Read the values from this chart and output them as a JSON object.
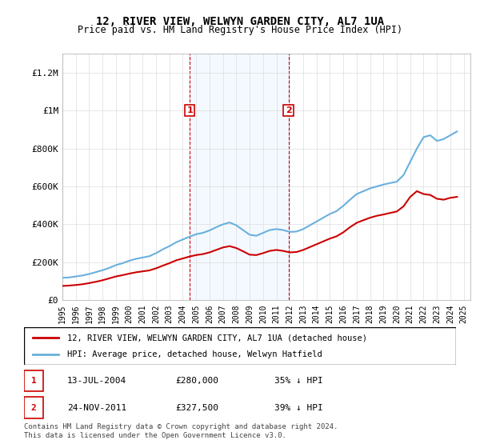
{
  "title": "12, RIVER VIEW, WELWYN GARDEN CITY, AL7 1UA",
  "subtitle": "Price paid vs. HM Land Registry's House Price Index (HPI)",
  "xlim": [
    1995,
    2025.5
  ],
  "ylim": [
    0,
    1300000
  ],
  "yticks": [
    0,
    200000,
    400000,
    600000,
    800000,
    1000000,
    1200000
  ],
  "ytick_labels": [
    "£0",
    "£200K",
    "£400K",
    "£600K",
    "£800K",
    "£1M",
    "£1.2M"
  ],
  "xticks": [
    1995,
    1996,
    1997,
    1998,
    1999,
    2000,
    2001,
    2002,
    2003,
    2004,
    2005,
    2006,
    2007,
    2008,
    2009,
    2010,
    2011,
    2012,
    2013,
    2014,
    2015,
    2016,
    2017,
    2018,
    2019,
    2020,
    2021,
    2022,
    2023,
    2024,
    2025
  ],
  "hpi_color": "#6ab0de",
  "sale_color": "#cc0000",
  "annotation_color": "#cc0000",
  "shaded_color": "#ddeeff",
  "marker1_x": 2004.53,
  "marker1_y": 280000,
  "marker2_x": 2011.9,
  "marker2_y": 327500,
  "annotation1": {
    "label": "1",
    "date": "13-JUL-2004",
    "price": "£280,000",
    "pct": "35% ↓ HPI"
  },
  "annotation2": {
    "label": "2",
    "date": "24-NOV-2011",
    "price": "£327,500",
    "pct": "39% ↓ HPI"
  },
  "legend_sale": "12, RIVER VIEW, WELWYN GARDEN CITY, AL7 1UA (detached house)",
  "legend_hpi": "HPI: Average price, detached house, Welwyn Hatfield",
  "footer": "Contains HM Land Registry data © Crown copyright and database right 2024.\nThis data is licensed under the Open Government Licence v3.0.",
  "hpi_data_x": [
    1995,
    1995.5,
    1996,
    1996.5,
    1997,
    1997.5,
    1998,
    1998.5,
    1999,
    1999.5,
    2000,
    2000.5,
    2001,
    2001.5,
    2002,
    2002.5,
    2003,
    2003.5,
    2004,
    2004.5,
    2005,
    2005.5,
    2006,
    2006.5,
    2007,
    2007.5,
    2008,
    2008.5,
    2009,
    2009.5,
    2010,
    2010.5,
    2011,
    2011.5,
    2012,
    2012.5,
    2013,
    2013.5,
    2014,
    2014.5,
    2015,
    2015.5,
    2016,
    2016.5,
    2017,
    2017.5,
    2018,
    2018.5,
    2019,
    2019.5,
    2020,
    2020.5,
    2021,
    2021.5,
    2022,
    2022.5,
    2023,
    2023.5,
    2024,
    2024.5
  ],
  "hpi_data_y": [
    118000,
    120000,
    125000,
    130000,
    138000,
    148000,
    158000,
    170000,
    185000,
    195000,
    208000,
    218000,
    225000,
    232000,
    248000,
    268000,
    285000,
    305000,
    320000,
    335000,
    348000,
    355000,
    368000,
    385000,
    400000,
    410000,
    395000,
    370000,
    345000,
    340000,
    355000,
    370000,
    375000,
    370000,
    360000,
    362000,
    375000,
    395000,
    415000,
    435000,
    455000,
    470000,
    498000,
    530000,
    560000,
    575000,
    590000,
    600000,
    610000,
    618000,
    625000,
    660000,
    730000,
    800000,
    860000,
    870000,
    840000,
    850000,
    870000,
    890000
  ],
  "sale_data_x": [
    1995,
    1995.5,
    1996,
    1996.5,
    1997,
    1997.5,
    1998,
    1998.5,
    1999,
    1999.5,
    2000,
    2000.5,
    2001,
    2001.5,
    2002,
    2002.5,
    2003,
    2003.5,
    2004,
    2004.5,
    2005,
    2005.5,
    2006,
    2006.5,
    2007,
    2007.5,
    2008,
    2008.5,
    2009,
    2009.5,
    2010,
    2010.5,
    2011,
    2011.5,
    2012,
    2012.5,
    2013,
    2013.5,
    2014,
    2014.5,
    2015,
    2015.5,
    2016,
    2016.5,
    2017,
    2017.5,
    2018,
    2018.5,
    2019,
    2019.5,
    2020,
    2020.5,
    2021,
    2021.5,
    2022,
    2022.5,
    2023,
    2023.5,
    2024,
    2024.5
  ],
  "sale_data_y": [
    75000,
    77000,
    80000,
    84000,
    90000,
    97000,
    105000,
    115000,
    125000,
    132000,
    140000,
    147000,
    152000,
    157000,
    168000,
    182000,
    195000,
    210000,
    220000,
    230000,
    238000,
    243000,
    252000,
    265000,
    278000,
    285000,
    275000,
    258000,
    240000,
    238000,
    248000,
    260000,
    265000,
    260000,
    252000,
    254000,
    265000,
    280000,
    295000,
    310000,
    325000,
    337000,
    358000,
    385000,
    408000,
    422000,
    435000,
    445000,
    452000,
    460000,
    468000,
    495000,
    545000,
    575000,
    560000,
    555000,
    535000,
    530000,
    540000,
    545000
  ]
}
